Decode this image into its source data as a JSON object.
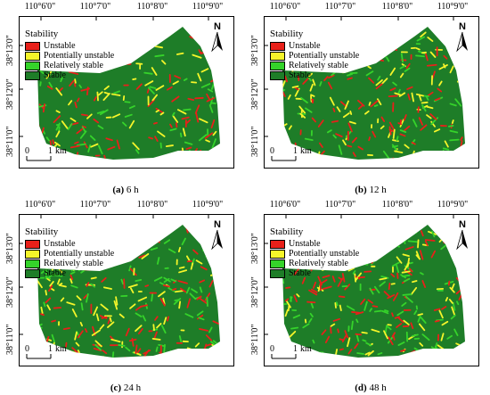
{
  "legend": {
    "title": "Stability",
    "classes": [
      {
        "label": "Unstable",
        "color": "#e8201a"
      },
      {
        "label": "Potentially unstable",
        "color": "#f5f52a"
      },
      {
        "label": "Relatively stable",
        "color": "#35d32a"
      },
      {
        "label": "Stable",
        "color": "#1e7d28"
      }
    ]
  },
  "axes": {
    "lon_ticks": [
      "110°6'0\"",
      "110°7'0\"",
      "110°8'0\"",
      "110°9'0\""
    ],
    "lat_ticks": [
      "38°13'0\"",
      "38°12'0\"",
      "38°11'0\""
    ]
  },
  "north_label": "N",
  "scale": {
    "zero": "0",
    "one": "1",
    "unit": "km"
  },
  "panels": [
    {
      "letter": "(a)",
      "label": "6 h"
    },
    {
      "letter": "(b)",
      "label": "12 h"
    },
    {
      "letter": "(c)",
      "label": "24 h"
    },
    {
      "letter": "(d)",
      "label": "48 h"
    }
  ]
}
